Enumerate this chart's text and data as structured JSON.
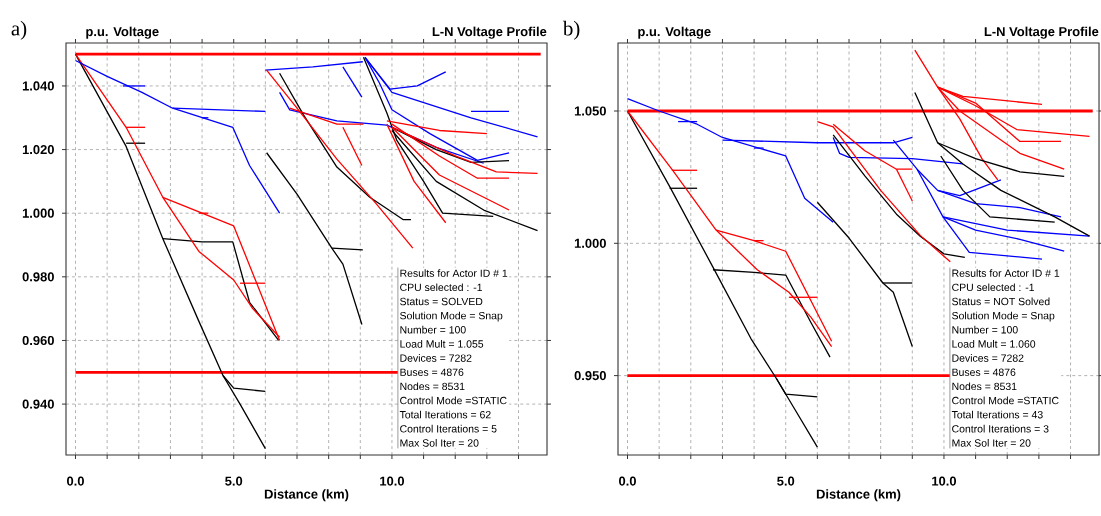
{
  "chart_data": [
    {
      "type": "line",
      "title": "L-N Voltage Profile",
      "xlabel": "Distance (km)",
      "ylabel": "p.u. Voltage",
      "annotations": [
        "a)",
        "Results for Actor ID # 1",
        "CPU selected : -1",
        "Status = SOLVED",
        "Solution Mode = Snap",
        "Number = 100",
        "Load Mult = 1.055",
        "Devices = 7282",
        "Buses = 4876",
        "Nodes = 8531",
        "Control Mode =STATIC",
        "Total Iterations = 62",
        "Control Iterations = 5",
        "Max Sol Iter = 20"
      ],
      "xlim": [
        -0.3,
        14.9
      ],
      "ylim": [
        0.924,
        1.0535
      ],
      "xticks": [
        {
          "value": 0,
          "label": "0.0"
        },
        {
          "value": 1,
          "label": null
        },
        {
          "value": 2,
          "label": null
        },
        {
          "value": 3,
          "label": null
        },
        {
          "value": 4,
          "label": null
        },
        {
          "value": 5,
          "label": "5.0"
        },
        {
          "value": 6,
          "label": null
        },
        {
          "value": 7,
          "label": null
        },
        {
          "value": 8,
          "label": null
        },
        {
          "value": 9,
          "label": null
        },
        {
          "value": 10,
          "label": "10.0"
        },
        {
          "value": 11,
          "label": null
        },
        {
          "value": 12,
          "label": null
        },
        {
          "value": 13,
          "label": null
        },
        {
          "value": 14,
          "label": null
        }
      ],
      "yticks": [
        {
          "value": 0.94,
          "label": "0.940"
        },
        {
          "value": 0.96,
          "label": "0.960"
        },
        {
          "value": 0.98,
          "label": "0.980"
        },
        {
          "value": 1.0,
          "label": "1.000"
        },
        {
          "value": 1.02,
          "label": "1.020"
        },
        {
          "value": 1.04,
          "label": "1.040"
        }
      ],
      "grid": true,
      "ref_lines": [
        {
          "axis": "y",
          "value": 1.05,
          "color": "#ff0000"
        },
        {
          "axis": "y",
          "value": 0.95,
          "color": "#ff0000"
        }
      ],
      "series": [
        {
          "color": "#000000",
          "x": [
            0,
            1.6,
            2.76,
            3.9,
            4.66,
            5.2,
            6.0
          ],
          "values": [
            1.05,
            1.021,
            0.992,
            0.966,
            0.949,
            0.94,
            0.926
          ]
        },
        {
          "color": "#000000",
          "x": [
            4.66,
            5.0,
            6.0
          ],
          "values": [
            0.949,
            0.945,
            0.944
          ]
        },
        {
          "color": "#000000",
          "x": [
            2.76,
            4.0,
            4.97,
            5.5,
            6.42
          ],
          "values": [
            0.992,
            0.991,
            0.991,
            0.972,
            0.96
          ]
        },
        {
          "color": "#000000",
          "x": [
            1.6,
            2.2
          ],
          "values": [
            1.022,
            1.022
          ]
        },
        {
          "color": "#ff0000",
          "x": [
            0,
            1.6,
            2.76,
            3.9,
            5.0,
            5.6,
            6.45
          ],
          "values": [
            1.05,
            1.027,
            1.005,
            0.988,
            0.979,
            0.97,
            0.961
          ]
        },
        {
          "color": "#ff0000",
          "x": [
            2.76,
            4.0,
            5.0,
            6.45
          ],
          "values": [
            1.005,
            1.0,
            0.996,
            0.96
          ]
        },
        {
          "color": "#ff0000",
          "x": [
            1.6,
            2.2
          ],
          "values": [
            1.027,
            1.027
          ]
        },
        {
          "color": "#ff0000",
          "x": [
            3.9,
            4.2
          ],
          "values": [
            1.0,
            1.0
          ]
        },
        {
          "color": "#ff0000",
          "x": [
            5.2,
            6.0
          ],
          "values": [
            0.978,
            0.978
          ]
        },
        {
          "color": "#0000ff",
          "x": [
            0,
            1.0,
            2.1,
            3.07,
            4.97,
            5.5,
            6.45
          ],
          "values": [
            1.048,
            1.043,
            1.038,
            1.033,
            1.027,
            1.015,
            1.0
          ]
        },
        {
          "color": "#0000ff",
          "x": [
            3.07,
            6.0
          ],
          "values": [
            1.033,
            1.032
          ]
        },
        {
          "color": "#0000ff",
          "x": [
            1.5,
            2.2
          ],
          "values": [
            1.04,
            1.04
          ]
        },
        {
          "color": "#0000ff",
          "x": [
            4.0,
            4.2
          ],
          "values": [
            1.03,
            1.03
          ]
        },
        {
          "color": "#0000ff",
          "x": [
            6.0,
            7.5,
            9.08
          ],
          "values": [
            1.045,
            1.046,
            1.0476
          ]
        },
        {
          "color": "#0000ff",
          "x": [
            8.45,
            9.05
          ],
          "values": [
            1.046,
            1.0365
          ]
        },
        {
          "color": "#0000ff",
          "x": [
            6.45,
            6.77,
            8.26,
            9.84,
            11.4,
            12.9
          ],
          "values": [
            1.038,
            1.0325,
            1.029,
            1.0277,
            1.0207,
            1.0157
          ]
        },
        {
          "color": "#0000ff",
          "x": [
            9.15,
            9.6,
            10.0,
            11.2,
            12.7,
            13.7
          ],
          "values": [
            1.049,
            1.041,
            1.0325,
            1.025,
            1.0166,
            1.019
          ]
        },
        {
          "color": "#0000ff",
          "x": [
            9.15,
            9.94,
            10.8,
            11.7
          ],
          "values": [
            1.049,
            1.039,
            1.04,
            1.0444
          ]
        },
        {
          "color": "#0000ff",
          "x": [
            9.15,
            10.0,
            12.5,
            14.6
          ],
          "values": [
            1.049,
            1.038,
            1.03,
            1.024
          ]
        },
        {
          "color": "#0000ff",
          "x": [
            12.5,
            13.7
          ],
          "values": [
            1.032,
            1.032
          ]
        },
        {
          "color": "#000000",
          "x": [
            6.04,
            7.0,
            8.1,
            8.45,
            9.05
          ],
          "values": [
            1.019,
            1.006,
            0.989,
            0.984,
            0.965
          ]
        },
        {
          "color": "#000000",
          "x": [
            8.1,
            9.08
          ],
          "values": [
            0.989,
            0.9885
          ]
        },
        {
          "color": "#000000",
          "x": [
            6.45,
            7.2,
            8.26,
            9.3,
            10.35,
            10.6
          ],
          "values": [
            1.044,
            1.031,
            1.0145,
            1.005,
            0.998,
            0.998
          ]
        },
        {
          "color": "#ff0000",
          "x": [
            6.04,
            7.0,
            8.26,
            9.5,
            10.66
          ],
          "values": [
            1.045,
            1.033,
            1.017,
            1.003,
            0.989
          ]
        },
        {
          "color": "#ff0000",
          "x": [
            6.77,
            8.26,
            9.1
          ],
          "values": [
            1.033,
            1.028,
            1.028
          ]
        },
        {
          "color": "#ff0000",
          "x": [
            8.45,
            9.05
          ],
          "values": [
            1.027,
            1.015
          ]
        },
        {
          "color": "#000000",
          "x": [
            9.1,
            9.84,
            10.15,
            11.0,
            11.6,
            13.2
          ],
          "values": [
            1.049,
            1.0315,
            1.023,
            1.01,
            1.0,
            0.999
          ]
        },
        {
          "color": "#000000",
          "x": [
            10.0,
            11.4,
            12.9,
            14.6
          ],
          "values": [
            1.026,
            1.01,
            1.001,
            0.9945
          ]
        },
        {
          "color": "#000000",
          "x": [
            10.0,
            11.4,
            12.5,
            13.7
          ],
          "values": [
            1.027,
            1.02,
            1.016,
            1.0165
          ]
        },
        {
          "color": "#ff0000",
          "x": [
            9.84,
            11.5,
            13.0
          ],
          "values": [
            1.029,
            1.026,
            1.025
          ]
        },
        {
          "color": "#ff0000",
          "x": [
            10.0,
            11.5,
            12.7,
            13.7
          ],
          "values": [
            1.028,
            1.018,
            1.011,
            1.011
          ]
        },
        {
          "color": "#ff0000",
          "x": [
            10.0,
            12.0,
            13.3,
            14.6
          ],
          "values": [
            1.027,
            1.018,
            1.013,
            1.0125
          ]
        },
        {
          "color": "#ff0000",
          "x": [
            9.84,
            10.7,
            11.7
          ],
          "values": [
            1.028,
            1.01,
            0.997
          ]
        },
        {
          "color": "#ff0000",
          "x": [
            10.0,
            11.5,
            13.7
          ],
          "values": [
            1.027,
            1.012,
            1.001
          ]
        }
      ]
    },
    {
      "type": "line",
      "title": "L-N Voltage Profile",
      "xlabel": "Distance (km)",
      "ylabel": "p.u. Voltage",
      "annotations": [
        "b)",
        "Results for Actor ID # 1",
        "CPU selected : -1",
        "Status = NOT Solved",
        "Solution Mode = Snap",
        "Number = 100",
        "Load Mult = 1.060",
        "Devices = 7282",
        "Buses = 4876",
        "Nodes = 8531",
        "Control Mode =STATIC",
        "Total Iterations = 43",
        "Control Iterations = 3",
        "Max Sol Iter = 20"
      ],
      "xlim": [
        -0.3,
        14.9
      ],
      "ylim": [
        0.92,
        1.0757
      ],
      "xticks": [
        {
          "value": 0,
          "label": "0.0"
        },
        {
          "value": 1,
          "label": null
        },
        {
          "value": 2,
          "label": null
        },
        {
          "value": 3,
          "label": null
        },
        {
          "value": 4,
          "label": null
        },
        {
          "value": 5,
          "label": "5.0"
        },
        {
          "value": 6,
          "label": null
        },
        {
          "value": 7,
          "label": null
        },
        {
          "value": 8,
          "label": null
        },
        {
          "value": 9,
          "label": null
        },
        {
          "value": 10,
          "label": "10.0"
        },
        {
          "value": 11,
          "label": null
        },
        {
          "value": 12,
          "label": null
        },
        {
          "value": 13,
          "label": null
        },
        {
          "value": 14,
          "label": null
        }
      ],
      "yticks": [
        {
          "value": 0.95,
          "label": "0.950"
        },
        {
          "value": 1.0,
          "label": "1.000"
        },
        {
          "value": 1.05,
          "label": "1.050"
        }
      ],
      "grid": true,
      "ref_lines": [
        {
          "axis": "y",
          "value": 1.05,
          "color": "#ff0000"
        },
        {
          "axis": "y",
          "value": 0.95,
          "color": "#ff0000"
        }
      ],
      "series": [
        {
          "color": "#000000",
          "x": [
            0,
            1.33,
            2.7,
            3.9,
            4.7,
            5.3,
            6.0
          ],
          "values": [
            1.05,
            1.0215,
            0.991,
            0.964,
            0.949,
            0.937,
            0.923
          ]
        },
        {
          "color": "#000000",
          "x": [
            4.7,
            5.0,
            6.0
          ],
          "values": [
            0.949,
            0.943,
            0.942
          ]
        },
        {
          "color": "#000000",
          "x": [
            2.7,
            4.0,
            5.0,
            5.8,
            6.4
          ],
          "values": [
            0.99,
            0.989,
            0.988,
            0.97,
            0.957
          ]
        },
        {
          "color": "#000000",
          "x": [
            1.33,
            2.2
          ],
          "values": [
            1.0208,
            1.0208
          ]
        },
        {
          "color": "#ff0000",
          "x": [
            0,
            1.4,
            2.8,
            4.1,
            5.1,
            5.8,
            6.45
          ],
          "values": [
            1.05,
            1.028,
            1.005,
            0.99,
            0.9815,
            0.972,
            0.961
          ]
        },
        {
          "color": "#ff0000",
          "x": [
            2.8,
            4.0,
            5.0,
            6.45
          ],
          "values": [
            1.005,
            1.001,
            0.997,
            0.963
          ]
        },
        {
          "color": "#ff0000",
          "x": [
            1.4,
            2.2
          ],
          "values": [
            1.0276,
            1.0276
          ]
        },
        {
          "color": "#ff0000",
          "x": [
            4.0,
            4.3
          ],
          "values": [
            1.001,
            1.001
          ]
        },
        {
          "color": "#ff0000",
          "x": [
            5.1,
            6.0
          ],
          "values": [
            0.9796,
            0.9796
          ]
        },
        {
          "color": "#0000ff",
          "x": [
            0,
            1.0,
            2.2,
            3.0,
            5.0,
            5.6,
            6.5
          ],
          "values": [
            1.0547,
            1.05,
            1.045,
            1.04,
            1.033,
            1.017,
            1.008
          ]
        },
        {
          "color": "#0000ff",
          "x": [
            3.0,
            6.0,
            8.4,
            9.0
          ],
          "values": [
            1.039,
            1.038,
            1.038,
            1.04
          ]
        },
        {
          "color": "#0000ff",
          "x": [
            1.6,
            2.2
          ],
          "values": [
            1.046,
            1.046
          ]
        },
        {
          "color": "#0000ff",
          "x": [
            4.0,
            4.3
          ],
          "values": [
            1.036,
            1.036
          ]
        },
        {
          "color": "#0000ff",
          "x": [
            6.5,
            6.7,
            7.0,
            9.0,
            10.6
          ],
          "values": [
            1.04,
            1.034,
            1.0325,
            1.032,
            1.03
          ]
        },
        {
          "color": "#0000ff",
          "x": [
            8.4,
            9.15,
            9.8,
            10.5,
            11.8
          ],
          "values": [
            1.039,
            1.028,
            1.02,
            1.018,
            1.024
          ]
        },
        {
          "color": "#0000ff",
          "x": [
            9.8,
            11.0,
            12.4,
            13.7
          ],
          "values": [
            1.02,
            1.015,
            1.0135,
            1.01
          ]
        },
        {
          "color": "#0000ff",
          "x": [
            9.15,
            9.97,
            12.0,
            14.6
          ],
          "values": [
            1.028,
            1.01,
            1.005,
            1.0027
          ]
        },
        {
          "color": "#0000ff",
          "x": [
            9.97,
            11.0,
            12.4,
            13.8
          ],
          "values": [
            1.01,
            1.005,
            1.0015,
            0.997
          ]
        },
        {
          "color": "#0000ff",
          "x": [
            9.97,
            10.8,
            13.1
          ],
          "values": [
            1.01,
            0.9966,
            0.994
          ]
        },
        {
          "color": "#000000",
          "x": [
            6.0,
            7.0,
            8.07,
            8.4,
            9.0
          ],
          "values": [
            1.0155,
            1.002,
            0.985,
            0.9815,
            0.961
          ]
        },
        {
          "color": "#000000",
          "x": [
            8.07,
            9.0
          ],
          "values": [
            0.985,
            0.985
          ]
        },
        {
          "color": "#000000",
          "x": [
            6.5,
            7.5,
            8.5,
            9.25,
            10.0,
            10.66
          ],
          "values": [
            1.041,
            1.0255,
            1.011,
            1.0027,
            0.996,
            0.9947
          ]
        },
        {
          "color": "#ff0000",
          "x": [
            6.0,
            6.5,
            8.0,
            9.25,
            10.2
          ],
          "values": [
            1.046,
            1.044,
            1.02,
            1.003,
            0.993
          ]
        },
        {
          "color": "#ff0000",
          "x": [
            6.5,
            7.5,
            8.5,
            9.0
          ],
          "values": [
            1.045,
            1.035,
            1.028,
            1.028
          ]
        },
        {
          "color": "#ff0000",
          "x": [
            8.5,
            9.0
          ],
          "values": [
            1.028,
            1.016
          ]
        },
        {
          "color": "#ff0000",
          "x": [
            9.08,
            9.8,
            10.6,
            13.1
          ],
          "values": [
            1.073,
            1.059,
            1.0555,
            1.0525
          ]
        },
        {
          "color": "#ff0000",
          "x": [
            9.8,
            11.0,
            12.3,
            14.6
          ],
          "values": [
            1.059,
            1.052,
            1.043,
            1.0404
          ]
        },
        {
          "color": "#ff0000",
          "x": [
            9.8,
            11.0,
            12.4,
            13.7
          ],
          "values": [
            1.059,
            1.053,
            1.0385,
            1.0385
          ]
        },
        {
          "color": "#ff0000",
          "x": [
            9.8,
            10.5,
            12.4,
            13.8
          ],
          "values": [
            1.059,
            1.05,
            1.034,
            1.028
          ]
        },
        {
          "color": "#ff0000",
          "x": [
            9.8,
            10.5,
            11.2,
            11.7
          ],
          "values": [
            1.059,
            1.047,
            1.032,
            1.024
          ]
        },
        {
          "color": "#000000",
          "x": [
            9.08,
            9.8,
            10.6,
            11.8,
            13.5,
            14.6
          ],
          "values": [
            1.057,
            1.038,
            1.03,
            1.02,
            1.01,
            1.0027
          ]
        },
        {
          "color": "#000000",
          "x": [
            9.8,
            11.0,
            12.4,
            13.8
          ],
          "values": [
            1.038,
            1.032,
            1.027,
            1.0253
          ]
        },
        {
          "color": "#000000",
          "x": [
            9.9,
            10.6,
            11.45,
            13.5
          ],
          "values": [
            1.033,
            1.02,
            1.01,
            1.008
          ]
        }
      ]
    }
  ]
}
